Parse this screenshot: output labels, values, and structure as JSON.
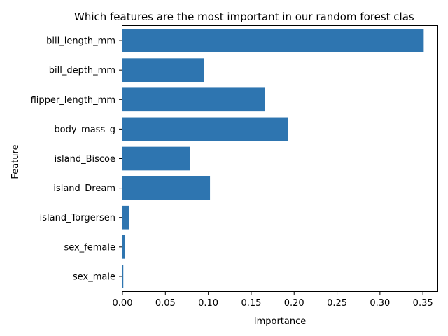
{
  "chart_data": {
    "type": "bar",
    "orientation": "horizontal",
    "title": "Which features are the most important in our random forest clas",
    "xlabel": "Importance",
    "ylabel": "Feature",
    "categories": [
      "bill_length_mm",
      "bill_depth_mm",
      "flipper_length_mm",
      "body_mass_g",
      "island_Biscoe",
      "island_Dream",
      "island_Torgersen",
      "sex_female",
      "sex_male"
    ],
    "values": [
      0.351,
      0.095,
      0.166,
      0.193,
      0.079,
      0.102,
      0.008,
      0.003,
      0.001
    ],
    "xlim": [
      0,
      0.367
    ],
    "xticks": [
      0.0,
      0.05,
      0.1,
      0.15,
      0.2,
      0.25,
      0.3,
      0.35
    ],
    "xtick_labels": [
      "0.00",
      "0.05",
      "0.10",
      "0.15",
      "0.20",
      "0.25",
      "0.30",
      "0.35"
    ],
    "grid": false,
    "bar_color": "#2e75b0"
  }
}
